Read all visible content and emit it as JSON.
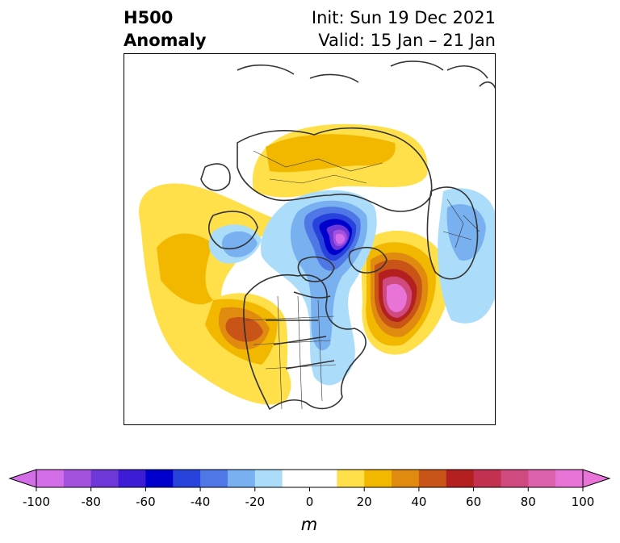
{
  "header": {
    "title_line1": "H500",
    "title_line2": "Anomaly",
    "init_text": "Init: Sun 19 Dec 2021",
    "valid_text": "Valid: 15 Jan – 21 Jan"
  },
  "colorbar": {
    "units": "m",
    "tick_labels": [
      "-100",
      "-80",
      "-60",
      "-40",
      "-20",
      "0",
      "20",
      "40",
      "60",
      "80",
      "100"
    ],
    "bins": [
      {
        "value": -100,
        "color": "#d46ee8"
      },
      {
        "value": -90,
        "color": "#a352e0"
      },
      {
        "value": -80,
        "color": "#6e38d9"
      },
      {
        "value": -70,
        "color": "#3c1cd4"
      },
      {
        "value": -60,
        "color": "#0000cc"
      },
      {
        "value": -50,
        "color": "#2843dc"
      },
      {
        "value": -40,
        "color": "#4f78e6"
      },
      {
        "value": -30,
        "color": "#78b0f0"
      },
      {
        "value": -20,
        "color": "#abdcfa"
      },
      {
        "value": -10,
        "color": "#ffffff"
      },
      {
        "value": 0,
        "color": "#ffffff"
      },
      {
        "value": 10,
        "color": "#ffe04a"
      },
      {
        "value": 20,
        "color": "#f2b800"
      },
      {
        "value": 30,
        "color": "#e08a10"
      },
      {
        "value": 40,
        "color": "#c85418"
      },
      {
        "value": 50,
        "color": "#b42020"
      },
      {
        "value": 60,
        "color": "#c23250"
      },
      {
        "value": 70,
        "color": "#cf4a7e"
      },
      {
        "value": 80,
        "color": "#dc62ac"
      },
      {
        "value": 90,
        "color": "#e874d8"
      }
    ],
    "extend_low_color": "#d46ee8",
    "extend_high_color": "#e874d8"
  }
}
